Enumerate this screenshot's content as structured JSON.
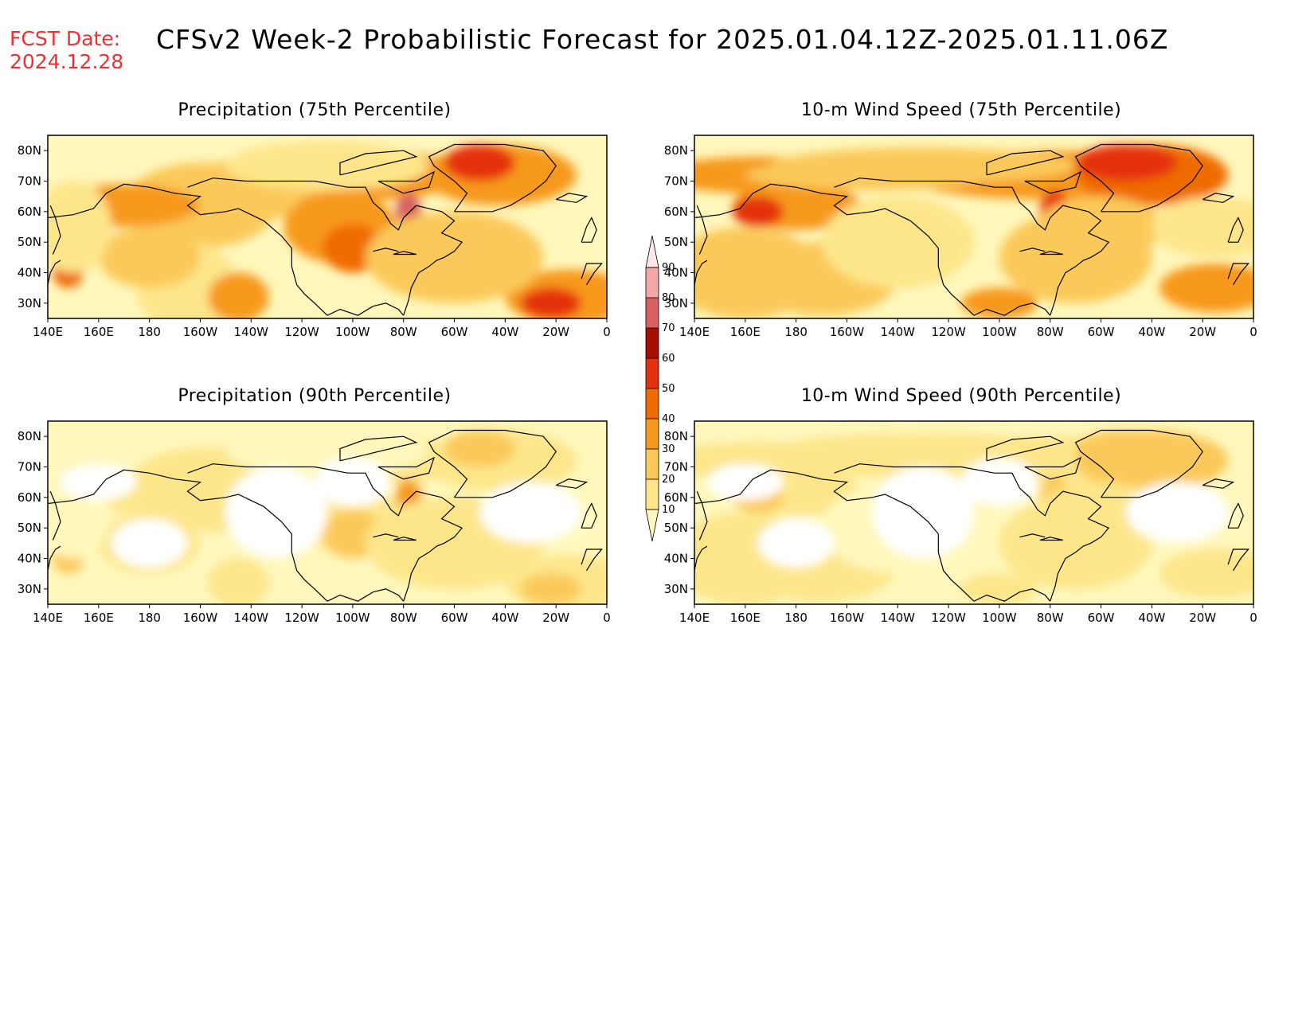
{
  "header": {
    "fcst_label": "FCST Date:",
    "fcst_date": "2024.12.28",
    "title": "CFSv2 Week-2 Probabilistic Forecast for 2025.01.04.12Z-2025.01.11.06Z"
  },
  "axes": {
    "lon_ticks": [
      "140E",
      "160E",
      "180",
      "160W",
      "140W",
      "120W",
      "100W",
      "80W",
      "60W",
      "40W",
      "20W",
      "0"
    ],
    "lat_ticks": [
      "80N",
      "70N",
      "60N",
      "50N",
      "40N",
      "30N"
    ],
    "lat_values": [
      80,
      70,
      60,
      50,
      40,
      30
    ],
    "lon_range_deg_east": [
      140,
      360
    ],
    "lat_range": [
      25,
      85
    ]
  },
  "panels": [
    {
      "id": "precip-75",
      "title": "Precipitation (75th Percentile)",
      "intensity": 1.0,
      "field": "precip"
    },
    {
      "id": "wind-75",
      "title": "10-m Wind Speed (75th Percentile)",
      "intensity": 1.0,
      "field": "wind"
    },
    {
      "id": "precip-90",
      "title": "Precipitation (90th Percentile)",
      "intensity": 0.45,
      "field": "precip"
    },
    {
      "id": "wind-90",
      "title": "10-m Wind Speed (90th Percentile)",
      "intensity": 0.45,
      "field": "wind"
    }
  ],
  "colorbar": {
    "levels": [
      10,
      20,
      30,
      40,
      50,
      60,
      70,
      80,
      90
    ],
    "colors": [
      "#fff7bb",
      "#fde68a",
      "#fbc95a",
      "#f7991f",
      "#ef6c00",
      "#e53010",
      "#a80d00",
      "#d86060",
      "#f2a8a8",
      "#fce8e8"
    ]
  }
}
